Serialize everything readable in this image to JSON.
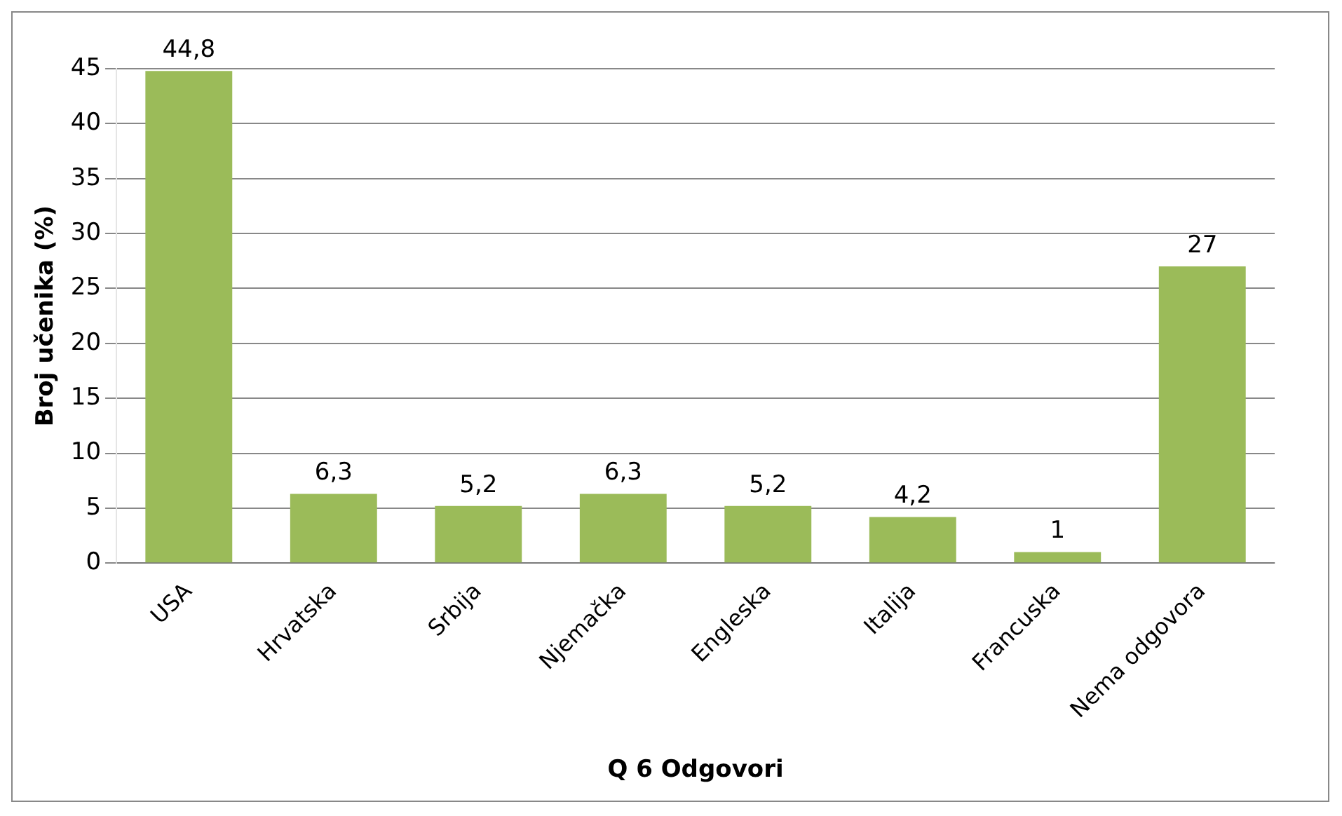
{
  "chart_data": {
    "type": "bar",
    "xlabel": "Q 6 Odgovori",
    "ylabel": "Broj učenika (%)",
    "categories": [
      "USA",
      "Hrvatska",
      "Srbija",
      "Njemačka",
      "Engleska",
      "Italija",
      "Francuska",
      "Nema odgovora"
    ],
    "values": [
      44.8,
      6.3,
      5.2,
      6.3,
      5.2,
      4.2,
      1,
      27
    ],
    "value_labels": [
      "44,8",
      "6,3",
      "5,2",
      "6,3",
      "5,2",
      "4,2",
      "1",
      "27"
    ],
    "color": "#9bbb59",
    "ylim": [
      0,
      45
    ],
    "yticks": [
      0,
      5,
      10,
      15,
      20,
      25,
      30,
      35,
      40,
      45
    ],
    "grid": "y",
    "legend": false
  }
}
